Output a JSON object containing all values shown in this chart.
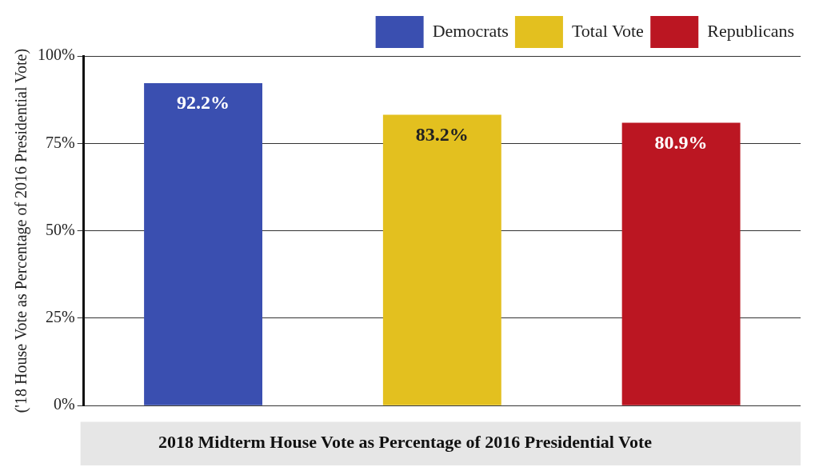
{
  "chart_data": {
    "type": "bar",
    "title": "2018 Midterm House Vote as Percentage of 2016 Presidential Vote",
    "ylabel": "('18 House Vote as Percentage of 2016 Presidential Vote)",
    "categories": [
      null,
      null,
      null
    ],
    "series": [
      {
        "name": "Democrats",
        "color": "#3a4fb0",
        "values": [
          92.2,
          null,
          null
        ],
        "value_labels": [
          "92.2%",
          null,
          null
        ]
      },
      {
        "name": "Total Vote",
        "color": "#e3c01f",
        "values": [
          null,
          83.2,
          null
        ],
        "value_labels": [
          null,
          "83.2%",
          null
        ]
      },
      {
        "name": "Republicans",
        "color": "#bb1622",
        "values": [
          null,
          null,
          80.9
        ],
        "value_labels": [
          null,
          null,
          "80.9%"
        ]
      }
    ],
    "ylim": [
      0,
      100
    ],
    "yticks": [
      {
        "value": 0,
        "label": "0%"
      },
      {
        "value": 25,
        "label": "25%"
      },
      {
        "value": 50,
        "label": "50%"
      },
      {
        "value": 75,
        "label": "75%"
      },
      {
        "value": 100,
        "label": "100%"
      }
    ],
    "grid": "y",
    "legend": "top right"
  }
}
